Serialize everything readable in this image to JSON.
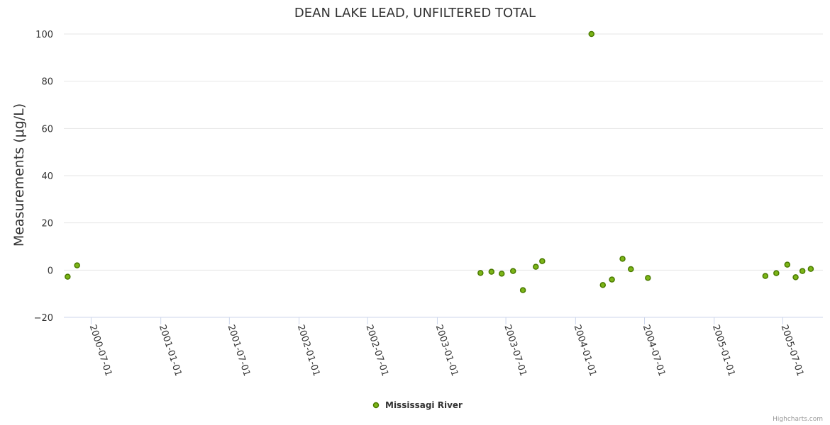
{
  "chart_data": {
    "type": "scatter",
    "title": "DEAN LAKE LEAD, UNFILTERED TOTAL",
    "xlabel": "",
    "ylabel": "Measurements (μg/L)",
    "x_axis_type": "datetime",
    "xlim": [
      "2000-04-20",
      "2005-10-15"
    ],
    "ylim": [
      -20,
      100
    ],
    "y_ticks": [
      -20,
      0,
      20,
      40,
      60,
      80,
      100
    ],
    "x_ticks": [
      "2000-07-01",
      "2001-01-01",
      "2001-07-01",
      "2002-01-01",
      "2002-07-01",
      "2003-01-01",
      "2003-07-01",
      "2004-01-01",
      "2004-07-01",
      "2005-01-01",
      "2005-07-01"
    ],
    "grid": true,
    "legend_position": "bottom-center",
    "series": [
      {
        "name": "Mississagi River",
        "color": "#7cb518",
        "stroke": "#4a7a00",
        "points": [
          {
            "x": "2000-04-30",
            "y": -2.8
          },
          {
            "x": "2000-05-25",
            "y": 2.0
          },
          {
            "x": "2003-04-25",
            "y": -1.2
          },
          {
            "x": "2003-05-24",
            "y": -0.7
          },
          {
            "x": "2003-06-20",
            "y": -1.5
          },
          {
            "x": "2003-07-20",
            "y": -0.4
          },
          {
            "x": "2003-08-15",
            "y": -8.5
          },
          {
            "x": "2003-09-18",
            "y": 1.4
          },
          {
            "x": "2003-10-05",
            "y": 3.8
          },
          {
            "x": "2004-02-12",
            "y": 100
          },
          {
            "x": "2004-03-13",
            "y": -6.3
          },
          {
            "x": "2004-04-06",
            "y": -4.0
          },
          {
            "x": "2004-05-04",
            "y": 4.8
          },
          {
            "x": "2004-05-26",
            "y": 0.4
          },
          {
            "x": "2004-07-10",
            "y": -3.3
          },
          {
            "x": "2005-05-16",
            "y": -2.5
          },
          {
            "x": "2005-06-14",
            "y": -1.3
          },
          {
            "x": "2005-07-13",
            "y": 2.3
          },
          {
            "x": "2005-08-04",
            "y": -3.0
          },
          {
            "x": "2005-08-22",
            "y": -0.4
          },
          {
            "x": "2005-09-13",
            "y": 0.5
          }
        ]
      }
    ]
  },
  "legend": {
    "label": "Mississagi River"
  },
  "credits": "Highcharts.com"
}
